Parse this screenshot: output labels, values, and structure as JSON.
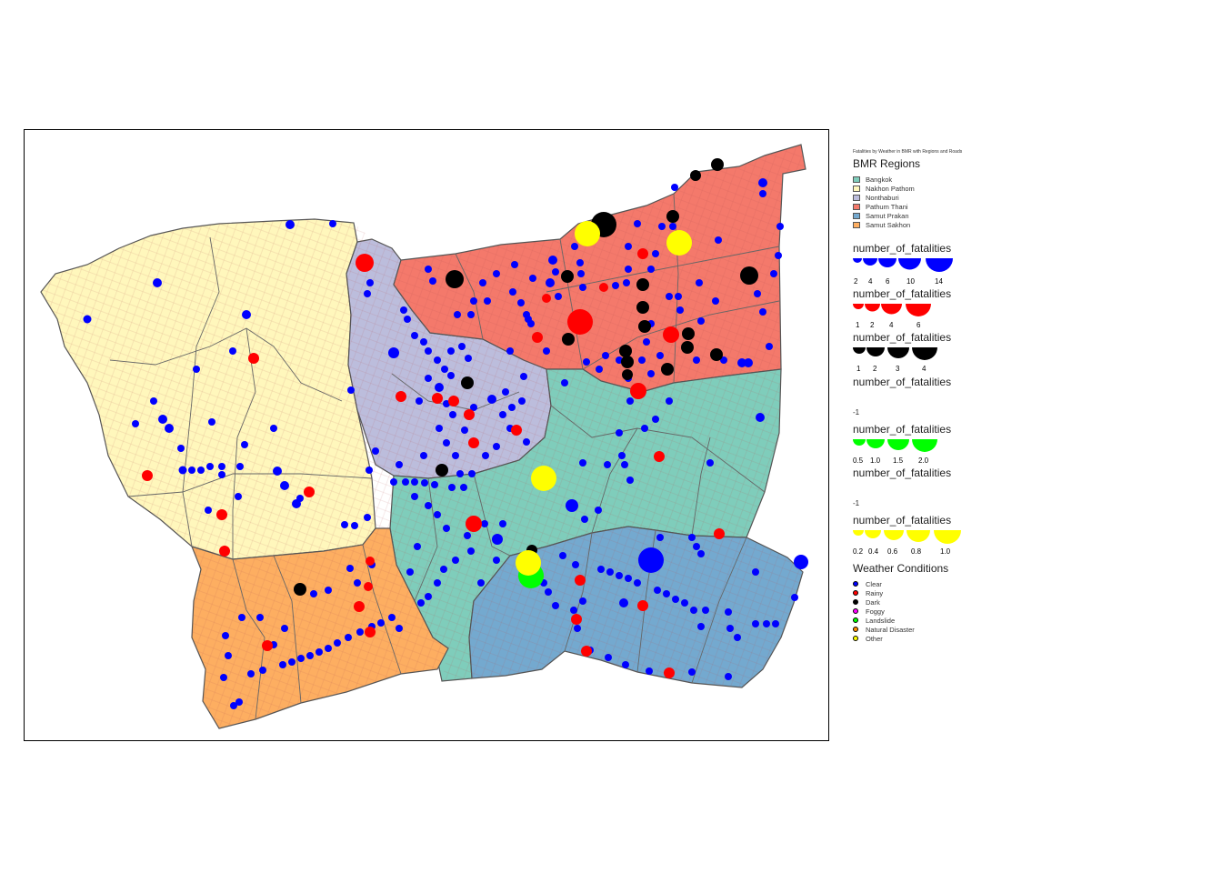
{
  "legend": {
    "title": "Fatalities by Weather in BMR with Regions and Roads",
    "regions_title": "BMR Regions",
    "regions": [
      {
        "name": "Bangkok",
        "color": "#7fcdbb"
      },
      {
        "name": "Nakhon Pathom",
        "color": "#fff7bc"
      },
      {
        "name": "Nonthaburi",
        "color": "#bcbddc"
      },
      {
        "name": "Pathum Thani",
        "color": "#f4796b"
      },
      {
        "name": "Samut Prakan",
        "color": "#74a9cf"
      },
      {
        "name": "Samut Sakhon",
        "color": "#fdae61"
      }
    ],
    "size_legends": [
      {
        "title": "number_of_fatalities",
        "color": "#0000ff",
        "labels": [
          "2",
          "4",
          "6",
          "10",
          "14"
        ]
      },
      {
        "title": "number_of_fatalities",
        "color": "#ff0000",
        "labels": [
          "1",
          "2",
          "4",
          "6"
        ]
      },
      {
        "title": "number_of_fatalities",
        "color": "#000000",
        "labels": [
          "1",
          "2",
          "3",
          "4"
        ]
      },
      {
        "title": "number_of_fatalities",
        "color": "",
        "labels": [
          "-1"
        ]
      },
      {
        "title": "number_of_fatalities",
        "color": "#00ff00",
        "labels": [
          "0.5",
          "1.0",
          "1.5",
          "2.0"
        ]
      },
      {
        "title": "number_of_fatalities",
        "color": "",
        "labels": [
          "-1"
        ]
      },
      {
        "title": "number_of_fatalities",
        "color": "#ffff00",
        "labels": [
          "0.2",
          "0.4",
          "0.6",
          "0.8",
          "1.0"
        ]
      }
    ],
    "weather_title": "Weather Conditions",
    "weather": [
      {
        "name": "Clear",
        "color": "#0000ff"
      },
      {
        "name": "Rainy",
        "color": "#ff0000"
      },
      {
        "name": "Dark",
        "color": "#000000"
      },
      {
        "name": "Foggy",
        "color": "#ff00ff"
      },
      {
        "name": "Landslide",
        "color": "#00ff00"
      },
      {
        "name": "Natural Disaster",
        "color": "#ff8c00"
      },
      {
        "name": "Other",
        "color": "#ffff00"
      }
    ]
  }
}
